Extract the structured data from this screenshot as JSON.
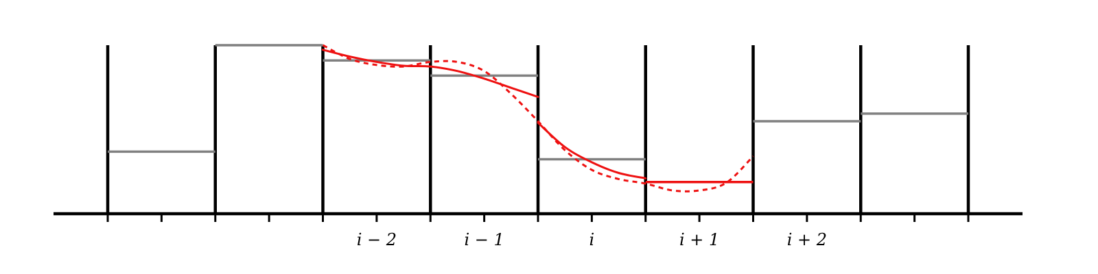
{
  "chart_data": {
    "type": "line",
    "title": "",
    "xlabel": "",
    "ylabel": "",
    "cell_count": 8,
    "cell_labels": [
      "",
      "",
      "i − 2",
      "i − 1",
      "i",
      "i + 1",
      "i + 2",
      ""
    ],
    "ylim": [
      0,
      1
    ],
    "cell_averages": [
      0.3,
      1.0,
      0.9,
      0.8,
      0.25,
      0.1,
      0.5,
      0.55
    ],
    "highlighted_cells": [
      5
    ],
    "series": [
      {
        "style": "solid",
        "segments": [
          {
            "x": [
              2.0,
              2.25,
              2.5,
              2.75,
              3.0,
              3.25,
              3.5,
              3.75,
              4.0
            ],
            "y": [
              0.97,
              0.925,
              0.89,
              0.865,
              0.86,
              0.83,
              0.78,
              0.72,
              0.66
            ]
          },
          {
            "x": [
              4.0,
              4.25,
              4.5,
              4.75,
              5.0
            ],
            "y": [
              0.49,
              0.33,
              0.23,
              0.16,
              0.125
            ]
          }
        ]
      },
      {
        "style": "dashed",
        "segments": [
          {
            "x": [
              2.0,
              2.25,
              2.5,
              2.75,
              3.0,
              3.25,
              3.5,
              3.75,
              4.0,
              4.25,
              4.5,
              4.75,
              5.0,
              5.25,
              5.5,
              5.75,
              6.0
            ],
            "y": [
              1.0,
              0.91,
              0.87,
              0.86,
              0.89,
              0.89,
              0.83,
              0.68,
              0.5,
              0.31,
              0.18,
              0.12,
              0.09,
              0.045,
              0.045,
              0.095,
              0.27
            ]
          }
        ]
      }
    ],
    "colors": {
      "axis": "#000000",
      "cell_average": "#808080",
      "reconstruction": "#ee1111"
    }
  }
}
